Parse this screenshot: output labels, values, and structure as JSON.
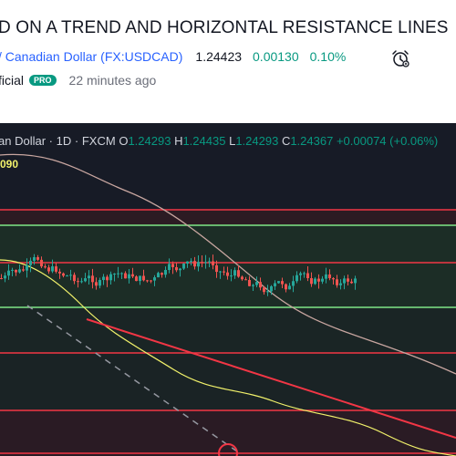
{
  "idea": {
    "title": "D ON A TREND AND HORIZONTAL RESISTANCE LINES",
    "symbol_name": "/ Canadian Dollar",
    "ticker": "(FX:USDCAD)",
    "price": "1.24423",
    "change": "0.00130",
    "change_pct": "0.10%",
    "author_suffix": "ficial",
    "badge": "PRO",
    "time_ago": "22 minutes ago"
  },
  "chart": {
    "instrument": "an Dollar",
    "interval": "1D",
    "source": "FXCM",
    "ohlc": {
      "o_label": "O",
      "o": "1.24293",
      "h_label": "H",
      "h": "1.24435",
      "l_label": "L",
      "l": "1.24293",
      "c_label": "C",
      "c": "1.24367",
      "diff": "+0.00074 (+0.06%)"
    },
    "ma_value": "090",
    "colors": {
      "background": "#171b26",
      "bull": "#26a69a",
      "bear": "#ef5350",
      "resistance": "#f23645",
      "support_green": "#7ee787",
      "ma_fast": "#f2f26b",
      "ma_slow": "#c8a6a0",
      "zone_green": "#1f3426",
      "zone_red": "#3b1c22"
    },
    "drawing_ideas": [
      "horizontal resistance lines",
      "descending trend line",
      "dashed trend projection"
    ]
  }
}
